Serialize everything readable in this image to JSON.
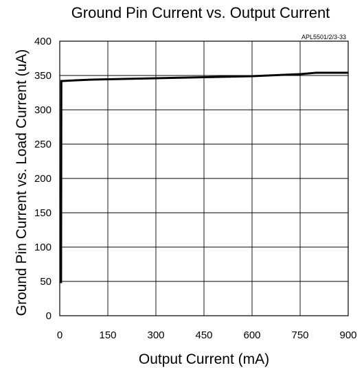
{
  "chart_data": {
    "type": "line",
    "title": "Ground Pin Current vs. Output Current",
    "annotation": "APL5501/2/3-33",
    "xlabel": "Output Current (mA)",
    "ylabel": "Ground Pin Current vs. Load Current (uA)",
    "xlim": [
      0,
      900
    ],
    "ylim": [
      0,
      400
    ],
    "xticks": [
      0,
      150,
      300,
      450,
      600,
      750,
      900
    ],
    "yticks": [
      0,
      50,
      100,
      150,
      200,
      250,
      300,
      350,
      400
    ],
    "x_tick_labels": [
      "0",
      "150",
      "300",
      "450",
      "600",
      "750",
      "900"
    ],
    "y_tick_labels": [
      "0",
      "50",
      "100",
      "150",
      "200",
      "250",
      "300",
      "350",
      "400"
    ],
    "grid": true,
    "line_color": "#000000",
    "series": [
      {
        "x": [
          0,
          4,
          5,
          10,
          50,
          100,
          200,
          300,
          400,
          500,
          600,
          650,
          700,
          750,
          800,
          850,
          900
        ],
        "y": [
          49,
          49,
          342,
          342,
          343,
          344,
          345,
          346,
          347,
          348,
          349,
          350,
          351,
          352,
          354,
          354,
          354
        ]
      }
    ]
  }
}
